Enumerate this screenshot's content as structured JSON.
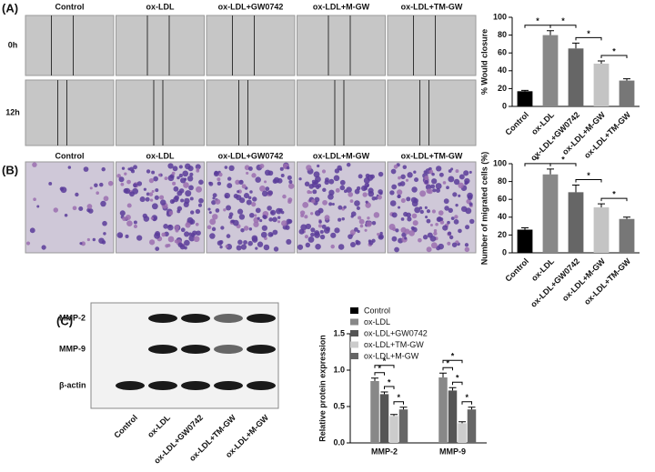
{
  "panels": [
    "(A)",
    "(B)",
    "(C)"
  ],
  "scratch": {
    "columns": [
      "Control",
      "ox-LDL",
      "ox-LDL+GW0742",
      "ox-LDL+M-GW",
      "ox-LDL+TM-GW"
    ],
    "rows": [
      "0h",
      "12h"
    ]
  },
  "transwell": {
    "columns": [
      "Control",
      "ox-LDL",
      "ox-LDL+GW0742",
      "ox-LDL+M-GW",
      "ox-LDL+TM-GW"
    ]
  },
  "blot": {
    "rows": [
      "MMP-2",
      "MMP-9",
      "β-actin"
    ],
    "lanes": [
      "Control",
      "ox-LDL",
      "ox-LDL+GW0742",
      "ox-LDL+TM-GW",
      "ox-LDL+M-GW"
    ]
  },
  "chart_data": [
    {
      "type": "bar",
      "ylabel": "% Would closure",
      "categories": [
        "Control",
        "ox-LDL",
        "ox-LDL+GW0742",
        "ox-LDL+M-GW",
        "ox-LDL+TM-GW"
      ],
      "values": [
        17,
        80,
        65,
        48,
        29
      ],
      "errors": [
        1,
        5,
        6,
        3,
        2
      ],
      "colors": [
        "#000000",
        "#888888",
        "#666666",
        "#c4c4c4",
        "#777777"
      ],
      "ylim": [
        0,
        100
      ],
      "yticks": [
        0,
        20,
        40,
        60,
        80,
        100
      ],
      "annotations": [
        "*",
        "*",
        "*",
        "*"
      ]
    },
    {
      "type": "bar",
      "ylabel": "Number of migrated cells (%)",
      "categories": [
        "Control",
        "ox-LDL",
        "ox-LDL+GW0742",
        "ox-LDL+M-GW",
        "ox-LDL+TM-GW"
      ],
      "values": [
        26,
        88,
        68,
        51,
        38
      ],
      "errors": [
        2,
        6,
        8,
        4,
        2
      ],
      "colors": [
        "#000000",
        "#888888",
        "#666666",
        "#c4c4c4",
        "#777777"
      ],
      "ylim": [
        0,
        100
      ],
      "yticks": [
        0,
        20,
        40,
        60,
        80,
        100
      ],
      "annotations": [
        "*",
        "*",
        "*",
        "*"
      ]
    },
    {
      "type": "grouped_bar",
      "ylabel": "Relative protein expression",
      "categories": [
        "MMP-2",
        "MMP-9"
      ],
      "series": [
        {
          "name": "Control",
          "color": "#000000",
          "values": [
            0,
            0
          ],
          "errors": [
            0,
            0
          ]
        },
        {
          "name": "ox-LDL",
          "color": "#888888",
          "values": [
            0.85,
            0.9
          ],
          "errors": [
            0.04,
            0.06
          ]
        },
        {
          "name": "ox-LDL+GW0742",
          "color": "#555555",
          "values": [
            0.67,
            0.72
          ],
          "errors": [
            0.03,
            0.04
          ]
        },
        {
          "name": "ox-LDL+TM-GW",
          "color": "#cccccc",
          "values": [
            0.37,
            0.27
          ],
          "errors": [
            0.02,
            0.02
          ]
        },
        {
          "name": "ox-LDL+M-GW",
          "color": "#666666",
          "values": [
            0.46,
            0.46
          ],
          "errors": [
            0.03,
            0.03
          ]
        }
      ],
      "ylim": [
        0,
        1.5
      ],
      "yticks": [
        {
          "value": 0,
          "label": "0.0"
        },
        {
          "value": 0.5,
          "label": "0.5"
        },
        {
          "value": 1,
          "label": "1.0"
        },
        {
          "value": 1.5,
          "label": "1.5"
        }
      ],
      "annotations": [
        "*",
        "*",
        "*",
        "*",
        "*",
        "*",
        "*",
        "*"
      ]
    }
  ]
}
